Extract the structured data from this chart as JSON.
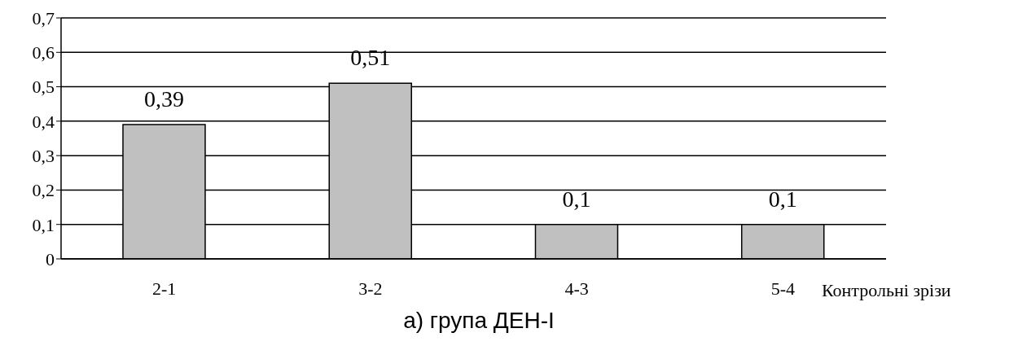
{
  "chart_data": {
    "type": "bar",
    "title": "а) група ДЕН-I",
    "xlabel": "Контрольні зрізи",
    "categories": [
      "2-1",
      "3-2",
      "4-3",
      "5-4"
    ],
    "values": [
      0.39,
      0.51,
      0.1,
      0.1
    ],
    "value_labels": [
      "0,39",
      "0,51",
      "0,1",
      "0,1"
    ],
    "color": "#c0c0c0",
    "ylim": [
      0,
      0.7
    ],
    "yticks": [
      0,
      {
        "value": 0.1,
        "label": "0,1"
      },
      {
        "value": 0.2,
        "label": "0,2"
      },
      {
        "value": 0.3,
        "label": "0,3"
      },
      {
        "value": 0.4,
        "label": "0,4"
      },
      {
        "value": 0.5,
        "label": "0,5"
      },
      {
        "value": 0.6,
        "label": "0,6"
      },
      {
        "value": 0.7,
        "label": "0,7"
      }
    ],
    "grid": "y"
  }
}
